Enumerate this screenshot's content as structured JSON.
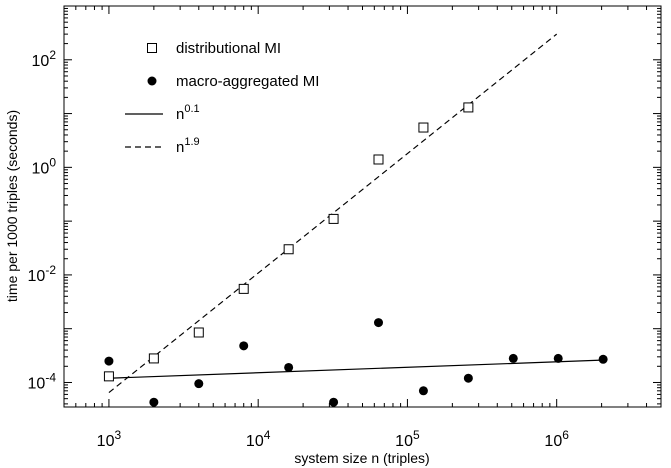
{
  "chart_data": {
    "type": "scatter",
    "xlabel": "system size n (triples)",
    "ylabel": "time per 1000 triples (seconds)",
    "x_scale": "log",
    "y_scale": "log",
    "xlim": [
      500,
      5000000
    ],
    "ylim": [
      3.5e-05,
      1000
    ],
    "x_ticks": [
      {
        "value": 1000,
        "base": "10",
        "exp": "3"
      },
      {
        "value": 10000,
        "base": "10",
        "exp": "4"
      },
      {
        "value": 100000,
        "base": "10",
        "exp": "5"
      },
      {
        "value": 1000000,
        "base": "10",
        "exp": "6"
      }
    ],
    "y_ticks": [
      {
        "value": 0.0001,
        "base": "10",
        "exp": "-4"
      },
      {
        "value": 0.01,
        "base": "10",
        "exp": "-2"
      },
      {
        "value": 1,
        "base": "10",
        "exp": "0"
      },
      {
        "value": 100,
        "base": "10",
        "exp": "2"
      }
    ],
    "grid": false,
    "legend_position": "top-left",
    "series": [
      {
        "name": "distributional MI",
        "marker": "open-square",
        "x": [
          1000,
          2000,
          4000,
          8000,
          16000,
          32000,
          64000,
          128000,
          256000
        ],
        "y": [
          0.00013,
          0.00028,
          0.00085,
          0.0055,
          0.03,
          0.11,
          1.4,
          5.5,
          13
        ]
      },
      {
        "name": "macro-aggregated MI",
        "marker": "filled-circle",
        "x": [
          1000,
          2000,
          4000,
          8000,
          16000,
          32000,
          64000,
          128000,
          256000,
          512000,
          1024000,
          2048000
        ],
        "y": [
          0.00025,
          4.3e-05,
          9.5e-05,
          0.00048,
          0.00019,
          4.3e-05,
          0.0013,
          7e-05,
          0.00012,
          0.00028,
          0.00028,
          0.00027
        ]
      }
    ],
    "fit_lines": [
      {
        "name": "n",
        "exponent_label": "0.1",
        "style": "solid",
        "x": [
          1000,
          2000000
        ],
        "y": [
          0.00012,
          0.00026
        ]
      },
      {
        "name": "n",
        "exponent_label": "1.9",
        "style": "dashed",
        "x": [
          1000,
          1000000
        ],
        "y": [
          6.5e-05,
          300
        ]
      }
    ]
  }
}
